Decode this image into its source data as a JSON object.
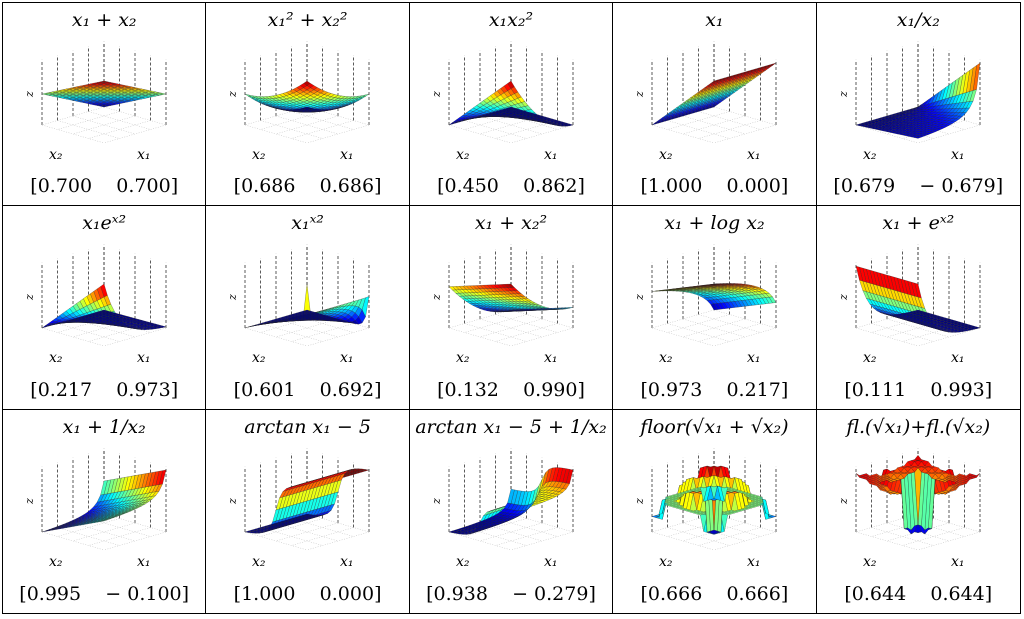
{
  "cells": [
    {
      "title": "x₁ + x₂",
      "kind": "plane",
      "coef": "0.700 0.700",
      "v1": "0.700",
      "v2": "0.700"
    },
    {
      "title": "x₁² + x₂²",
      "kind": "bowl",
      "v1": "0.686",
      "v2": "0.686"
    },
    {
      "title": "x₁x₂²",
      "kind": "prod",
      "v1": "0.450",
      "v2": "0.862"
    },
    {
      "title": "x₁",
      "kind": "x1",
      "v1": "1.000",
      "v2": "0.000"
    },
    {
      "title": "x₁/x₂",
      "kind": "ratio",
      "v1": "0.679",
      "v2": "− 0.679"
    },
    {
      "title": "x₁eˣ²",
      "kind": "expprod",
      "v1": "0.217",
      "v2": "0.973"
    },
    {
      "title": "x₁ˣ²",
      "kind": "spike",
      "v1": "0.601",
      "v2": "0.692"
    },
    {
      "title": "x₁ + x₂²",
      "kind": "x1sq",
      "v1": "0.132",
      "v2": "0.990"
    },
    {
      "title": "x₁ + log x₂",
      "kind": "log",
      "v1": "0.973",
      "v2": "0.217"
    },
    {
      "title": "x₁ + eˣ²",
      "kind": "exp",
      "v1": "0.111",
      "v2": "0.993"
    },
    {
      "title": "x₁ + 1/x₂",
      "kind": "inv",
      "v1": "0.995",
      "v2": "− 0.100"
    },
    {
      "title": "arctan x₁ − 5",
      "kind": "atan",
      "v1": "1.000",
      "v2": "0.000"
    },
    {
      "title": "arctan x₁ − 5 + 1/x₂",
      "kind": "atan2",
      "v1": "0.938",
      "v2": "− 0.279"
    },
    {
      "title": "floor(√x₁ + √x₂)",
      "kind": "floor",
      "v1": "0.666",
      "v2": "0.666"
    },
    {
      "title": "fl.(√x₁)+fl.(√x₂)",
      "kind": "floor2",
      "v1": "0.644",
      "v2": "0.644"
    }
  ],
  "labels": {
    "z": "z",
    "x1": "x₁",
    "x2": "x₂"
  }
}
